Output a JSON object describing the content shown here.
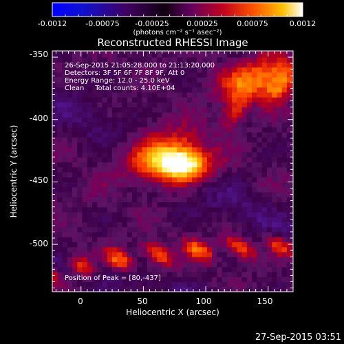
{
  "chart_data": {
    "type": "heatmap",
    "title": "Reconstructed RHESSI Image",
    "xlabel": "Heliocentric X (arcsec)",
    "ylabel": "Heliocentric Y (arcsec)",
    "xlim": [
      -23,
      170
    ],
    "ylim": [
      -538,
      -345
    ],
    "x_ticks": [
      0,
      50,
      100,
      150
    ],
    "y_ticks": [
      -350,
      -400,
      -450,
      -500
    ],
    "colorbar": {
      "range": [
        -0.0012,
        0.0012
      ],
      "ticks": [
        "-0.0012",
        "-0.00075",
        "-0.00025",
        "0.00025",
        "0.00075",
        "0.0012"
      ],
      "unit_label": "(photons cm⁻² s⁻¹ asec⁻²)",
      "colors": [
        "#0000ff",
        "#0000b0",
        "#300050",
        "#000000",
        "#6a0060",
        "#c00000",
        "#ff5000",
        "#ffb000",
        "#ffff60",
        "#ffffff"
      ]
    },
    "annotations": [
      "26-Sep-2015 21:05:28.000 to 21:13:20.000",
      "Detectors: 3F 5F 6F 7F 8F 9F, Att 0",
      "Energy Range: 12.0 - 25.0 keV",
      "Clean     Total counts: 4.10E+04"
    ],
    "peak_label": "Position of Peak = [80,-437]",
    "peak": [
      80,
      -437
    ],
    "sources": [
      {
        "x": 80,
        "y": -437,
        "amp": 0.0012,
        "sx": 16,
        "sy": 9
      },
      {
        "x": 65,
        "y": -428,
        "amp": 0.0008,
        "sx": 22,
        "sy": 14
      },
      {
        "x": 135,
        "y": -372,
        "amp": 0.00075,
        "sx": 18,
        "sy": 10
      },
      {
        "x": 155,
        "y": -358,
        "amp": 0.0005,
        "sx": 14,
        "sy": 8
      }
    ],
    "arc_band": {
      "amp": 0.0007,
      "width": 7
    }
  },
  "footer_timestamp": "27-Sep-2015 03:51"
}
